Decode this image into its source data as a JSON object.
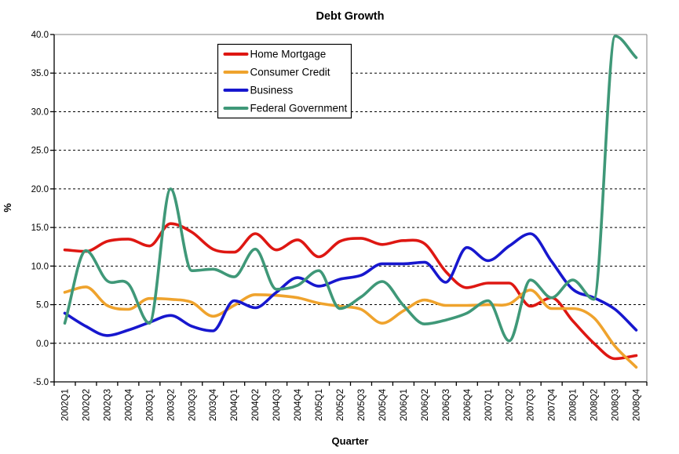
{
  "title": "Debt Growth",
  "axes": {
    "y_label": "%",
    "x_label": "Quarter",
    "y_tick_labels": [
      "40.0",
      "35.0",
      "30.0",
      "25.0",
      "20.0",
      "15.0",
      "10.0",
      "5.0",
      "0.0",
      "-5.0"
    ]
  },
  "colors": {
    "home_mortgage": "#de1712",
    "consumer_credit": "#efa32d",
    "business": "#1717ce",
    "federal_government": "#3f9878",
    "grid": "#000000",
    "axis": "#000000",
    "plot_border": "#808080",
    "legend_border": "#000000",
    "background": "#ffffff"
  },
  "chart_data": {
    "type": "line",
    "title": "Debt Growth",
    "xlabel": "Quarter",
    "ylabel": "%",
    "ylim": [
      -5,
      40
    ],
    "y_tick_step": 5,
    "grid": "horizontal-dashed",
    "line_style": "smooth",
    "legend_position": "inside-top-center",
    "categories": [
      "2002Q1",
      "2002Q2",
      "2002Q3",
      "2002Q4",
      "2003Q1",
      "2003Q2",
      "2003Q3",
      "2003Q4",
      "2004Q1",
      "2004Q2",
      "2004Q3",
      "2004Q4",
      "2005Q1",
      "2005Q2",
      "2005Q3",
      "2005Q4",
      "2006Q1",
      "2006Q2",
      "2006Q3",
      "2006Q4",
      "2007Q1",
      "2007Q2",
      "2007Q3",
      "2007Q4",
      "2008Q1",
      "2008Q2",
      "2008Q3",
      "2008Q4"
    ],
    "series": [
      {
        "name": "Home Mortgage",
        "color": "#de1712",
        "values": [
          12.1,
          11.9,
          13.2,
          13.5,
          12.6,
          15.5,
          14.4,
          12.2,
          11.8,
          14.2,
          12.1,
          13.4,
          11.2,
          13.2,
          13.6,
          12.8,
          13.3,
          12.9,
          9.3,
          7.2,
          7.8,
          7.8,
          4.8,
          5.9,
          2.9,
          0.0,
          -2.0,
          -1.6
        ]
      },
      {
        "name": "Consumer Credit",
        "color": "#efa32d",
        "values": [
          6.6,
          7.3,
          4.9,
          4.4,
          5.8,
          5.7,
          5.3,
          3.5,
          4.9,
          6.3,
          6.2,
          5.9,
          5.2,
          4.8,
          4.4,
          2.6,
          4.2,
          5.6,
          4.9,
          4.9,
          5.0,
          5.1,
          6.9,
          4.5,
          4.5,
          3.3,
          -0.4,
          -3.1
        ]
      },
      {
        "name": "Business",
        "color": "#1717ce",
        "values": [
          3.9,
          2.2,
          1.0,
          1.7,
          2.7,
          3.6,
          2.2,
          1.6,
          5.5,
          4.6,
          6.6,
          8.5,
          7.4,
          8.3,
          8.8,
          10.3,
          10.3,
          10.5,
          7.9,
          12.4,
          10.7,
          12.6,
          14.2,
          10.6,
          7.0,
          5.9,
          4.4,
          1.7
        ]
      },
      {
        "name": "Federal Government",
        "color": "#3f9878",
        "values": [
          2.6,
          12.0,
          8.1,
          7.7,
          2.6,
          20.0,
          9.4,
          9.6,
          8.6,
          12.2,
          7.0,
          7.5,
          9.4,
          4.5,
          6.0,
          8.0,
          4.9,
          2.5,
          3.0,
          3.9,
          5.5,
          0.3,
          8.2,
          5.9,
          8.2,
          5.7,
          39.8,
          37.0
        ]
      }
    ]
  }
}
